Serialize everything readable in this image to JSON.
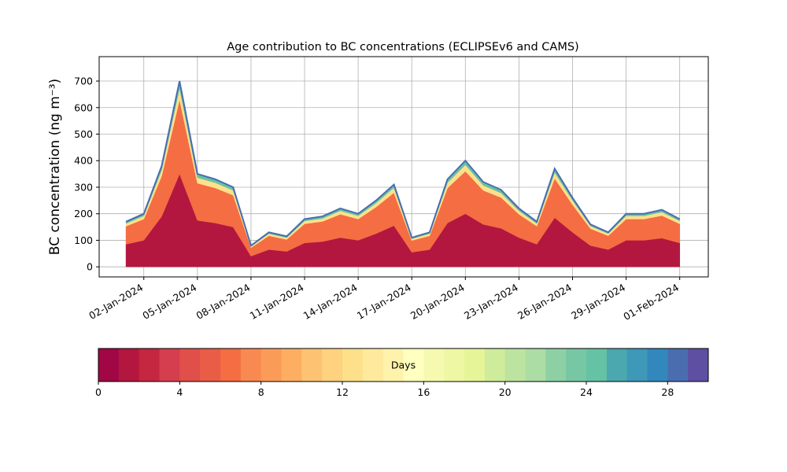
{
  "chart_data": {
    "type": "stackedarea",
    "title": "Age contribution to BC concentrations (ECLIPSEv6 and CAMS)",
    "y_label": "BC concentration (ng m⁻³)",
    "x": [
      "01-Jan-2024",
      "02-Jan-2024",
      "03-Jan-2024",
      "04-Jan-2024",
      "05-Jan-2024",
      "06-Jan-2024",
      "07-Jan-2024",
      "08-Jan-2024",
      "09-Jan-2024",
      "10-Jan-2024",
      "11-Jan-2024",
      "12-Jan-2024",
      "13-Jan-2024",
      "14-Jan-2024",
      "15-Jan-2024",
      "16-Jan-2024",
      "17-Jan-2024",
      "18-Jan-2024",
      "19-Jan-2024",
      "20-Jan-2024",
      "21-Jan-2024",
      "22-Jan-2024",
      "23-Jan-2024",
      "24-Jan-2024",
      "25-Jan-2024",
      "26-Jan-2024",
      "27-Jan-2024",
      "28-Jan-2024",
      "29-Jan-2024",
      "30-Jan-2024",
      "31-Jan-2024",
      "01-Feb-2024"
    ],
    "xticks": [
      "02-Jan-2024",
      "05-Jan-2024",
      "08-Jan-2024",
      "11-Jan-2024",
      "14-Jan-2024",
      "17-Jan-2024",
      "20-Jan-2024",
      "23-Jan-2024",
      "26-Jan-2024",
      "29-Jan-2024",
      "01-Feb-2024"
    ],
    "series": [
      {
        "color": "#b3173f",
        "values": [
          85,
          100,
          190,
          350,
          175,
          165,
          150,
          40,
          65,
          58,
          90,
          95,
          110,
          100,
          125,
          155,
          55,
          65,
          165,
          200,
          160,
          145,
          110,
          85,
          185,
          130,
          80,
          65,
          100,
          100,
          108,
          90
        ]
      },
      {
        "color": "#f46d43",
        "values": [
          68,
          80,
          152,
          280,
          140,
          132,
          120,
          32,
          52,
          45,
          72,
          76,
          88,
          80,
          100,
          124,
          44,
          52,
          132,
          160,
          128,
          116,
          88,
          68,
          148,
          104,
          64,
          52,
          80,
          80,
          85,
          72
        ]
      },
      {
        "color": "#fee08b",
        "values": [
          10,
          12,
          23,
          42,
          21,
          20,
          18,
          5,
          8,
          7,
          11,
          11,
          13,
          12,
          15,
          19,
          7,
          8,
          20,
          24,
          19,
          17,
          13,
          10,
          22,
          16,
          10,
          8,
          12,
          12,
          13,
          11
        ]
      },
      {
        "color": "#66c2a5",
        "values": [
          7,
          8,
          15,
          28,
          14,
          13,
          12,
          3,
          5,
          5,
          7,
          8,
          9,
          8,
          10,
          12,
          4,
          5,
          13,
          16,
          13,
          12,
          9,
          7,
          15,
          10,
          6,
          5,
          8,
          8,
          9,
          7
        ]
      }
    ],
    "line_color": "#4a6db0",
    "ylim": [
      -38,
      792
    ],
    "yticks": [
      0,
      100,
      200,
      300,
      400,
      500,
      600,
      700
    ],
    "grid": true,
    "colorbar": {
      "label": "Days",
      "lim": [
        0,
        30
      ],
      "ticks": [
        0,
        4,
        8,
        12,
        16,
        20,
        24,
        28
      ],
      "colors": [
        "#a10745",
        "#b3173f",
        "#c4273f",
        "#d53e4f",
        "#e04f4a",
        "#e95d47",
        "#f46d43",
        "#f88950",
        "#fa9b58",
        "#fdae61",
        "#fdc272",
        "#fed27f",
        "#fee08b",
        "#fee99d",
        "#fff3ac",
        "#ffffbf",
        "#f6fab0",
        "#eef7a3",
        "#e6f598",
        "#cfec9c",
        "#bce4a0",
        "#abdda4",
        "#8dd0a4",
        "#77c7a5",
        "#66c2a5",
        "#4ba8af",
        "#3e98b8",
        "#3288bd",
        "#4a6db0",
        "#5e4fa2"
      ]
    }
  }
}
